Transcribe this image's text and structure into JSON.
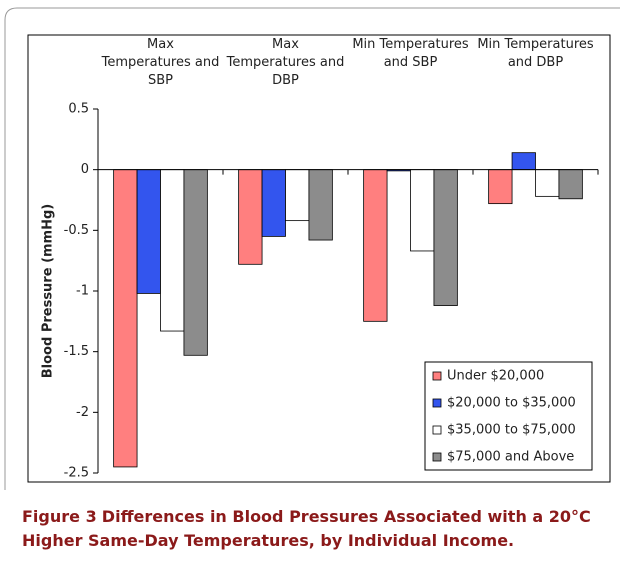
{
  "chart_data": {
    "type": "bar",
    "categories": [
      "Max Temperatures and SBP",
      "Max Temperatures and DBP",
      "Min Temperatures and SBP",
      "Min Temperatures and DBP"
    ],
    "series": [
      {
        "name": "Under $20,000",
        "color": "#ff7f7f",
        "values": [
          -2.45,
          -0.78,
          -1.25,
          -0.28
        ]
      },
      {
        "name": "$20,000 to $35,000",
        "color": "#3355ee",
        "values": [
          -1.02,
          -0.55,
          -0.01,
          0.14
        ]
      },
      {
        "name": "$35,000 to $75,000",
        "color": "#ffffff",
        "values": [
          -1.33,
          -0.42,
          -0.67,
          -0.22
        ]
      },
      {
        "name": "$75,000 and Above",
        "color": "#8c8c8c",
        "values": [
          -1.53,
          -0.58,
          -1.12,
          -0.24
        ]
      }
    ],
    "y_label": "Blood Pressure (mmHg)",
    "ylim": [
      -2.5,
      0.5
    ],
    "yticks": [
      0.5,
      0,
      -0.5,
      -1,
      -1.5,
      -2,
      -2.5
    ],
    "legend": "lower right"
  },
  "caption": {
    "label": "Figure 3",
    "text": "Differences in Blood Pressures Associated with a 20°C Higher Same-Day Temperatures, by Individual Income."
  }
}
